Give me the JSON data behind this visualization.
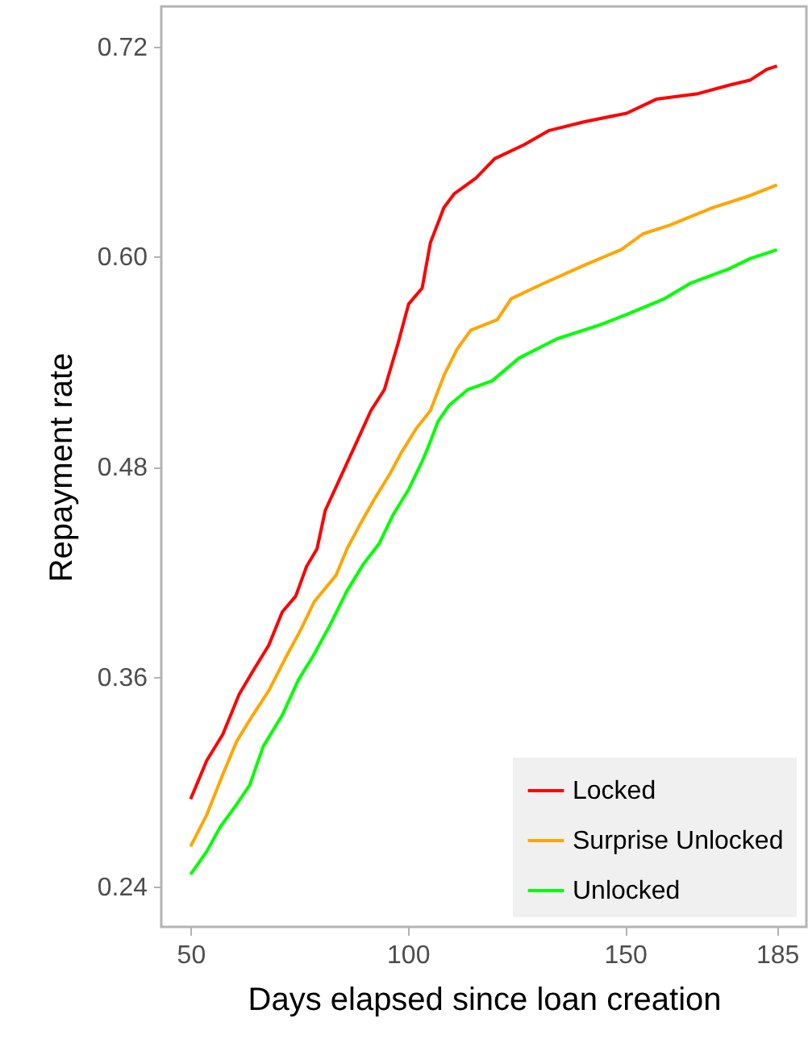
{
  "chart_data": {
    "type": "line",
    "xlabel": "Days elapsed since loan creation",
    "ylabel": "Repayment rate",
    "xlim": [
      43.25,
      191.75
    ],
    "xticks": [
      50,
      100,
      150,
      185
    ],
    "ylim": [
      0.217,
      0.743
    ],
    "yticks": [
      0.24,
      0.36,
      0.48,
      {
        "value": 0.6,
        "label": "0.60"
      },
      0.72
    ],
    "grid": false,
    "legend": "bottom right",
    "marker": "none",
    "line_style": "solid",
    "series": [
      {
        "name": "Locked",
        "color": "#ff0000",
        "x": [
          50,
          53.7,
          57.4,
          61.2,
          64.3,
          68,
          71.1,
          74.2,
          76.7,
          79.1,
          81,
          84.7,
          88.4,
          91.5,
          94.6,
          97.7,
          100.2,
          103.3,
          105.2,
          108.3,
          110.7,
          115.7,
          120,
          126.8,
          132.4,
          140.5,
          150.4,
          157.2,
          166.5,
          173.9,
          178.9,
          182.6,
          185
        ],
        "values": [
          0.29,
          0.312,
          0.327,
          0.35,
          0.363,
          0.378,
          0.397,
          0.406,
          0.423,
          0.433,
          0.455,
          0.475,
          0.495,
          0.512,
          0.524,
          0.55,
          0.573,
          0.582,
          0.608,
          0.628,
          0.636,
          0.645,
          0.656,
          0.664,
          0.672,
          0.677,
          0.682,
          0.69,
          0.693,
          0.698,
          0.701,
          0.707,
          0.709
        ]
      },
      {
        "name": "Surprise Unlocked",
        "color": "#ffa500",
        "x": [
          50,
          53.7,
          57.4,
          60.6,
          64.3,
          68,
          71.7,
          75.4,
          78.5,
          83.5,
          86,
          89,
          92.2,
          95.9,
          98.5,
          102,
          105.2,
          108.3,
          111.3,
          114.5,
          120.6,
          123.8,
          130.6,
          140.5,
          149.1,
          154.1,
          160.3,
          170.2,
          178.9,
          185
        ],
        "values": [
          0.263,
          0.281,
          0.304,
          0.323,
          0.338,
          0.352,
          0.37,
          0.387,
          0.403,
          0.418,
          0.433,
          0.447,
          0.461,
          0.476,
          0.488,
          0.502,
          0.512,
          0.532,
          0.547,
          0.558,
          0.564,
          0.576,
          0.584,
          0.595,
          0.604,
          0.613,
          0.618,
          0.628,
          0.635,
          0.641
        ]
      },
      {
        "name": "Unlocked",
        "color": "#00ff00",
        "x": [
          50,
          53.7,
          56.8,
          60.6,
          63.6,
          66.7,
          71.1,
          74.8,
          78.5,
          82.2,
          86,
          89.7,
          93.4,
          96.5,
          100.2,
          103.3,
          104.5,
          107,
          109.5,
          113.8,
          119.4,
          125.6,
          134.3,
          144.2,
          150.4,
          159.1,
          165.2,
          173.9,
          178.9,
          185
        ],
        "values": [
          0.247,
          0.26,
          0.274,
          0.287,
          0.298,
          0.32,
          0.338,
          0.358,
          0.373,
          0.39,
          0.409,
          0.424,
          0.436,
          0.452,
          0.467,
          0.483,
          0.49,
          0.506,
          0.515,
          0.524,
          0.529,
          0.542,
          0.553,
          0.561,
          0.567,
          0.576,
          0.585,
          0.593,
          0.599,
          0.604
        ]
      }
    ]
  }
}
